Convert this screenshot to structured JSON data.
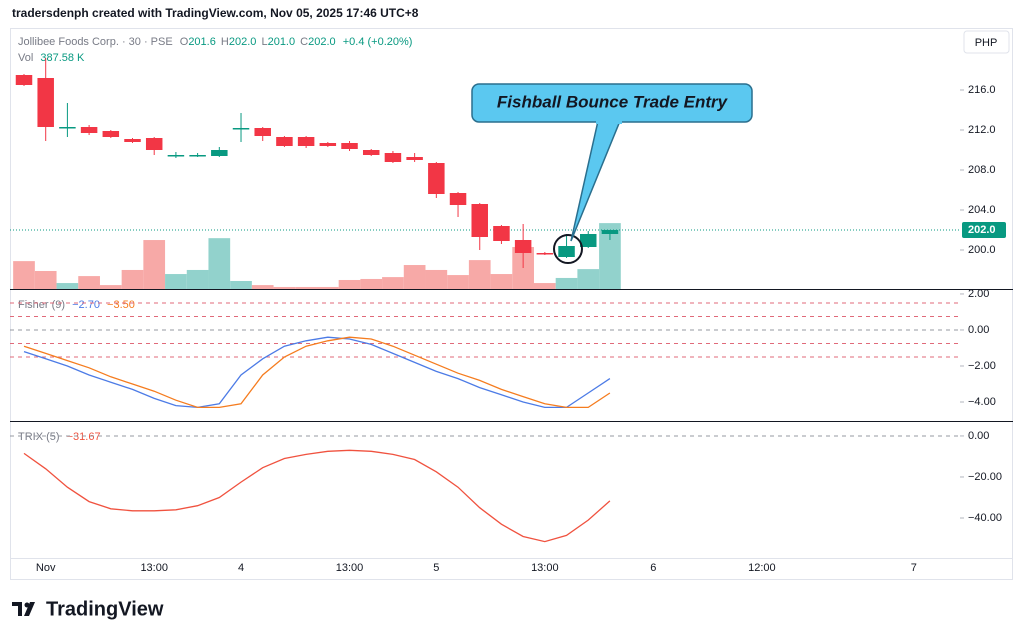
{
  "header": {
    "text": "tradersdenph created with TradingView.com, Nov 05, 2025 17:46 UTC+8"
  },
  "footer": {
    "logo": "TradingView"
  },
  "chart_data": [
    {
      "type": "candlestick",
      "title": "Jollibee Foods Corp. · 30 · PSE",
      "ohlc_legend": [
        {
          "prefix": "O",
          "value": "201.6"
        },
        {
          "prefix": "H",
          "value": "202.0"
        },
        {
          "prefix": "L",
          "value": "201.0"
        },
        {
          "prefix": "C",
          "value": "202.0"
        }
      ],
      "change": "+0.4 (+0.20%)",
      "volume_label": "Vol",
      "volume_value": "387.58 K",
      "currency": "PHP",
      "annotation": "Fishball Bounce Trade Entry",
      "last_price": {
        "value": 202,
        "label": "202.0"
      },
      "up_color": "#089981",
      "down_color": "#f23645",
      "volume_up_color": "#92d2cc",
      "volume_down_color": "#f7a9a7",
      "grid": false,
      "categories": [
        null,
        null,
        null,
        null,
        null,
        null,
        null,
        null,
        null,
        null,
        null,
        null,
        null,
        null,
        null,
        null,
        null,
        null,
        null,
        null,
        null,
        null,
        null,
        null,
        null,
        null,
        null,
        null
      ],
      "open": [
        217.5,
        217.2,
        212.2,
        212.3,
        211.9,
        211.1,
        211.2,
        209.5,
        209.5,
        209.4,
        212.2,
        212.2,
        211.3,
        211.3,
        210.7,
        210.7,
        210.0,
        209.7,
        209.3,
        208.7,
        205.7,
        204.6,
        202.4,
        201.0,
        199.7,
        199.3,
        200.3,
        201.6
      ],
      "high": [
        217.6,
        219.2,
        214.7,
        212.5,
        212.0,
        211.2,
        211.3,
        209.8,
        209.7,
        210.3,
        213.7,
        212.3,
        211.4,
        211.4,
        210.8,
        210.9,
        210.1,
        209.9,
        209.7,
        208.8,
        205.8,
        204.7,
        202.5,
        202.6,
        199.8,
        201.6,
        201.9,
        202.0
      ],
      "low": [
        216.4,
        210.9,
        211.3,
        211.5,
        211.2,
        210.7,
        209.5,
        209.2,
        209.3,
        209.3,
        210.8,
        210.9,
        210.3,
        210.2,
        210.3,
        209.9,
        209.4,
        208.7,
        208.8,
        205.2,
        203.3,
        200.0,
        200.6,
        198.2,
        199.5,
        199.2,
        200.2,
        201.0
      ],
      "close": [
        216.5,
        212.3,
        212.3,
        211.7,
        211.3,
        210.8,
        210.0,
        209.5,
        209.5,
        210.0,
        212.2,
        211.4,
        210.4,
        210.4,
        210.4,
        210.1,
        209.5,
        208.8,
        209.0,
        205.6,
        204.5,
        201.3,
        200.9,
        199.7,
        199.6,
        200.4,
        201.6,
        202.0
      ],
      "volume": [
        164,
        106,
        35,
        76,
        23,
        112,
        288,
        88,
        112,
        299,
        47,
        23,
        12,
        12,
        12,
        53,
        59,
        70,
        141,
        112,
        82,
        170,
        88,
        247,
        35,
        65,
        117,
        387.58
      ],
      "ylim": [
        196.1,
        222
      ],
      "yticks": [
        {
          "value": 216,
          "label": "216.0"
        },
        {
          "value": 212,
          "label": "212.0"
        },
        {
          "value": 208,
          "label": "208.0"
        },
        {
          "value": 204,
          "label": "204.0"
        },
        {
          "value": 200,
          "label": "200.0"
        }
      ],
      "xlim": [
        -0.645,
        43.13
      ],
      "xticks": [
        {
          "value": 1,
          "label": "Nov"
        },
        {
          "value": 6,
          "label": "13:00"
        },
        {
          "value": 10,
          "label": "4"
        },
        {
          "value": 15,
          "label": "13:00"
        },
        {
          "value": 19,
          "label": "5"
        },
        {
          "value": 24,
          "label": "13:00"
        },
        {
          "value": 29,
          "label": "6"
        },
        {
          "value": 34,
          "label": "12:00"
        },
        {
          "value": 41,
          "label": "7"
        }
      ]
    },
    {
      "type": "line",
      "title": "Fisher (9)",
      "series": [
        {
          "legend_value": "−2.70",
          "color": "#4c7be6",
          "values": [
            -1.2,
            -1.6,
            -2.0,
            -2.5,
            -2.9,
            -3.3,
            -3.8,
            -4.2,
            -4.3,
            -4.1,
            -2.5,
            -1.6,
            -0.9,
            -0.6,
            -0.4,
            -0.5,
            -0.8,
            -1.3,
            -1.8,
            -2.3,
            -2.7,
            -3.2,
            -3.6,
            -4.0,
            -4.3,
            -4.3,
            -3.5,
            -2.7
          ]
        },
        {
          "legend_value": "−3.50",
          "color": "#f57c1f",
          "values": [
            -0.9,
            -1.3,
            -1.7,
            -2.1,
            -2.6,
            -3.0,
            -3.4,
            -3.9,
            -4.3,
            -4.3,
            -4.1,
            -2.5,
            -1.5,
            -0.9,
            -0.6,
            -0.4,
            -0.5,
            -0.9,
            -1.4,
            -1.9,
            -2.4,
            -2.8,
            -3.3,
            -3.7,
            -4.1,
            -4.3,
            -4.3,
            -3.5
          ]
        }
      ],
      "levels": [
        1.5,
        0.75,
        0,
        -0.75,
        -1.5
      ],
      "ylim": [
        -5,
        2.22
      ],
      "yticks": [
        {
          "value": 2,
          "label": "2.00"
        },
        {
          "value": 0,
          "label": "0.00"
        },
        {
          "value": -2,
          "label": "−2.00"
        },
        {
          "value": -4,
          "label": "−4.00"
        }
      ]
    },
    {
      "type": "line",
      "title": "TRIX (5)",
      "series": [
        {
          "legend_value": "−31.67",
          "color": "#f0523f",
          "values": [
            -8.5,
            -16,
            -25,
            -32,
            -35.5,
            -36.5,
            -36.5,
            -36,
            -34,
            -30,
            -22.5,
            -15.5,
            -11,
            -9,
            -7.5,
            -7,
            -7.5,
            -9,
            -11.5,
            -17.5,
            -25,
            -35,
            -43,
            -49,
            -51.5,
            -48.5,
            -41,
            -31.67
          ]
        }
      ],
      "levels": [
        0
      ],
      "ylim": [
        -59.5,
        6.8
      ],
      "yticks": [
        {
          "value": 0,
          "label": "0.00"
        },
        {
          "value": -20,
          "label": "−20.00"
        },
        {
          "value": -40,
          "label": "−40.00"
        }
      ]
    }
  ]
}
